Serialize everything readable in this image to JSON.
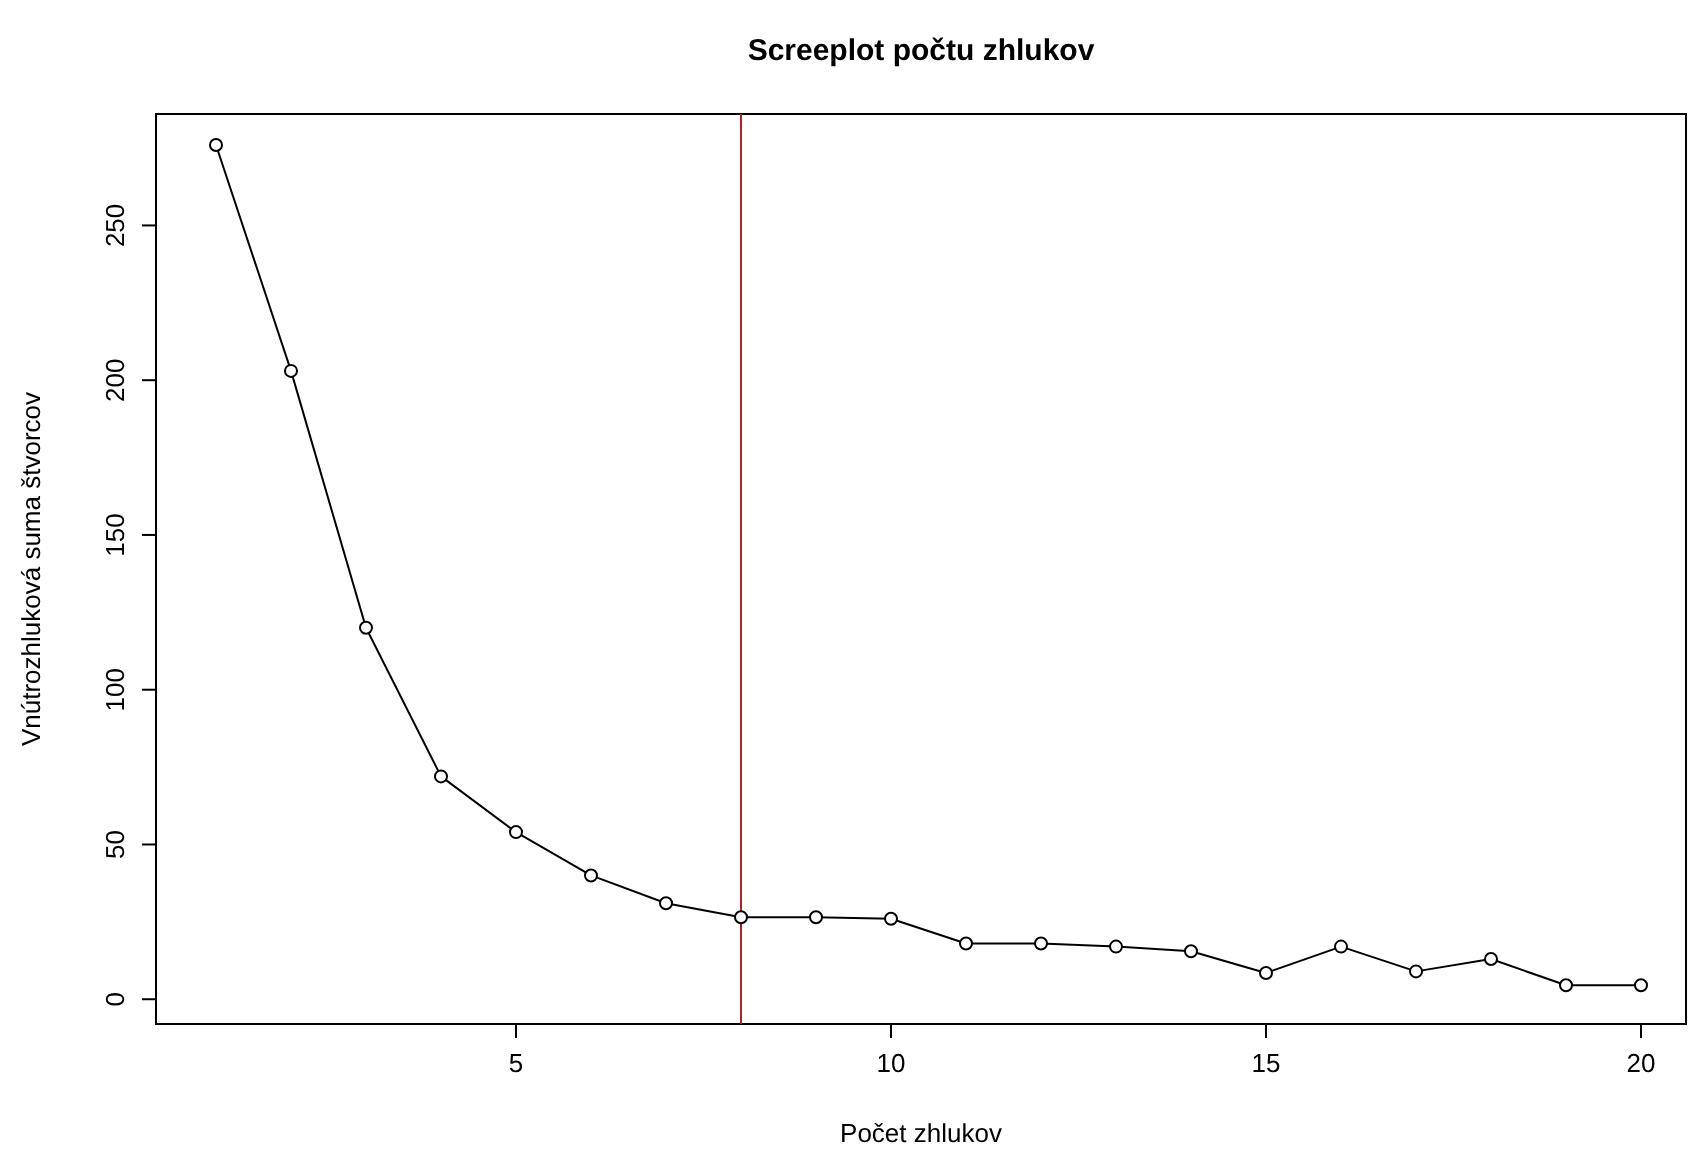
{
  "chart_data": {
    "type": "line",
    "title": "Screeplot počtu zhlukov",
    "xlabel": "Počet zhlukov",
    "ylabel": "Vnútrozhluková suma štvorcov",
    "x": [
      1,
      2,
      3,
      4,
      5,
      6,
      7,
      8,
      9,
      10,
      11,
      12,
      13,
      14,
      15,
      16,
      17,
      18,
      19,
      20
    ],
    "series": [
      {
        "color": "#000000",
        "values": [
          276,
          203,
          120,
          72,
          54,
          40,
          31,
          26.5,
          26.5,
          26,
          18,
          18,
          17,
          15.5,
          8.5,
          17,
          9,
          13,
          4.5,
          4.5
        ]
      }
    ],
    "xlim": [
      0.2,
      20.6
    ],
    "ylim": [
      -8,
      286
    ],
    "xticks": [
      5,
      10,
      15,
      20
    ],
    "yticks": [
      0,
      50,
      100,
      150,
      200,
      250
    ],
    "marker": "circle",
    "line_style": "solid",
    "grid": false,
    "ref_lines": [
      {
        "axis": "x",
        "value": 8,
        "color": "#b22222"
      }
    ]
  }
}
